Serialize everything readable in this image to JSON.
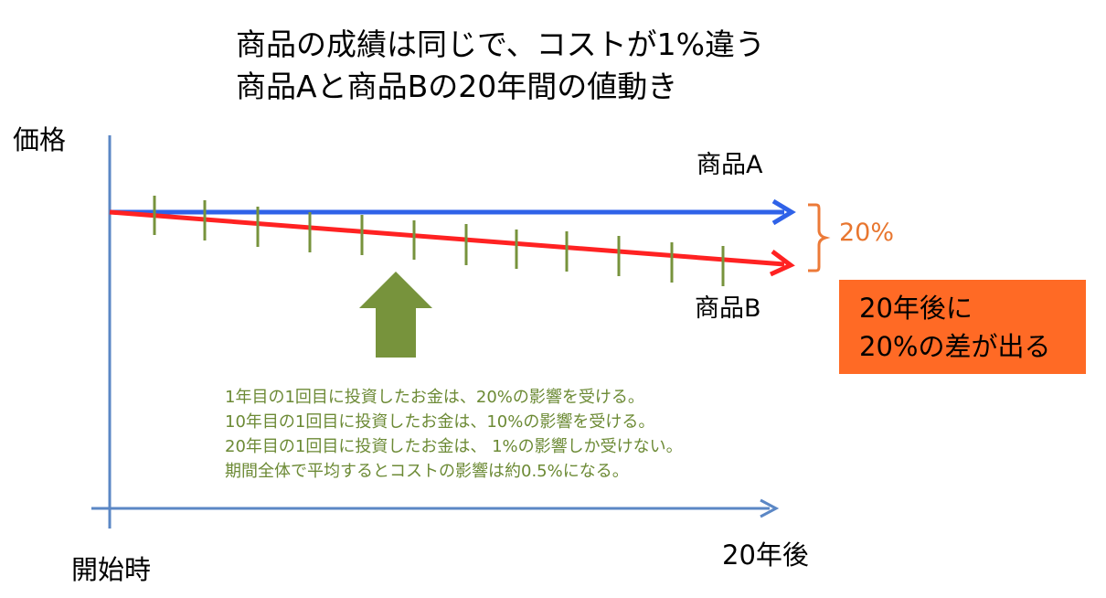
{
  "title": {
    "line1": "商品の成績は同じで、コストが1%違う",
    "line2": "商品Aと商品Bの20年間の値動き"
  },
  "axes": {
    "y_label": "価格",
    "x_start_label": "開始時",
    "x_end_label": "20年後"
  },
  "series": {
    "a_label": "商品A",
    "b_label": "商品B"
  },
  "difference": {
    "label": "20%"
  },
  "callout": {
    "line1": "20年後に",
    "line2": "20%の差が出る"
  },
  "notes": [
    "1年目の1回目に投資したお金は、20%の影響を受ける。",
    "10年目の1回目に投資したお金は、10%の影響を受ける。",
    "20年目の1回目に投資したお金は、 1%の影響しか受けない。",
    "期間全体で平均するとコストの影響は約0.5%になる。"
  ],
  "colors": {
    "axis": "#5b87c5",
    "line_a": "#2f62e8",
    "line_b": "#ff2222",
    "tick": "#77933c",
    "big_arrow": "#77933c",
    "bracket": "#ec7a38",
    "diff_text": "#e8762f",
    "callout_bg": "#ff6a25",
    "note_text": "#6c8a35"
  }
}
